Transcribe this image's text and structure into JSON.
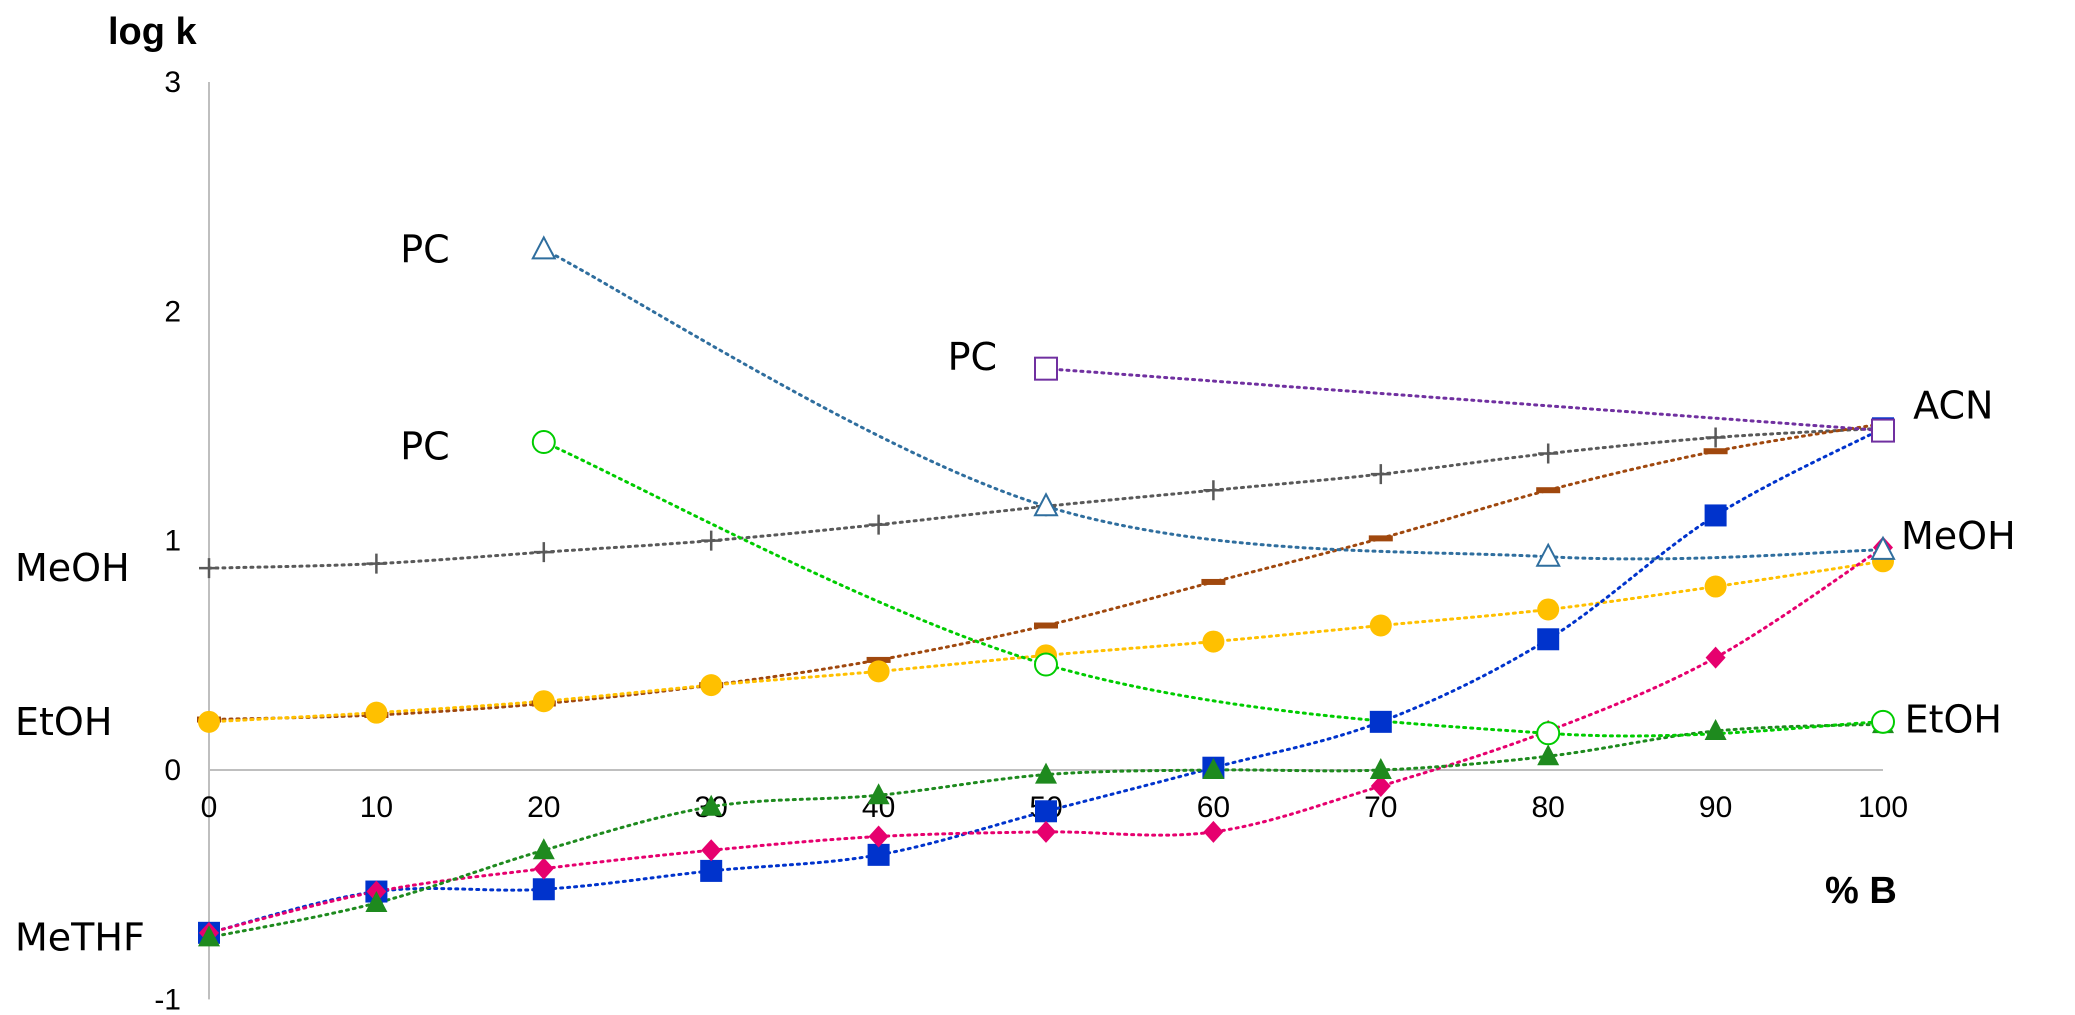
{
  "chart_data": {
    "type": "scatter",
    "title": "",
    "ylabel": "log k",
    "xlabel": "% B",
    "xlim": [
      0,
      100
    ],
    "ylim": [
      -1,
      3
    ],
    "x_ticks": [
      "0",
      "10",
      "20",
      "30",
      "40",
      "50",
      "60",
      "70",
      "80",
      "90",
      "100"
    ],
    "y_ticks": [
      "-1",
      "0",
      "1",
      "2",
      "3"
    ],
    "grid": false,
    "legend": "none",
    "annotations": [
      {
        "text": "PC",
        "x": 12.9,
        "y": 2.27
      },
      {
        "text": "PC",
        "x": 12.9,
        "y": 1.41
      },
      {
        "text": "PC",
        "x": 45.6,
        "y": 1.8
      },
      {
        "text": "ACN",
        "x": 104.2,
        "y": 1.59
      },
      {
        "text": "MeOH",
        "x": 104.5,
        "y": 1.02
      },
      {
        "text": "EtOH",
        "x": 104.2,
        "y": 0.22
      },
      {
        "text": "MeOH",
        "x": -3.0,
        "y": 0.88
      },
      {
        "text": "EtOH",
        "x": -3.0,
        "y": 0.21
      },
      {
        "text": "MeTHF",
        "x": -3.0,
        "y": -0.73
      }
    ],
    "series": [
      {
        "marker": "plus",
        "color": "#595959",
        "x": [
          0,
          10,
          20,
          30,
          40,
          50,
          60,
          70,
          80,
          90,
          100
        ],
        "y": [
          0.88,
          0.9,
          0.95,
          1.0,
          1.07,
          1.15,
          1.22,
          1.29,
          1.38,
          1.45,
          1.49
        ]
      },
      {
        "marker": "dash",
        "color": "#A0480E",
        "x": [
          0,
          10,
          20,
          30,
          40,
          50,
          60,
          70,
          80,
          90,
          100
        ],
        "y": [
          0.22,
          0.24,
          0.29,
          0.37,
          0.48,
          0.63,
          0.82,
          1.01,
          1.22,
          1.39,
          1.51
        ]
      },
      {
        "marker": "circle",
        "color": "#FFC000",
        "x": [
          0,
          10,
          20,
          30,
          40,
          50,
          60,
          70,
          80,
          90,
          100
        ],
        "y": [
          0.21,
          0.25,
          0.3,
          0.37,
          0.43,
          0.5,
          0.56,
          0.63,
          0.7,
          0.8,
          0.91
        ]
      },
      {
        "marker": "square",
        "color": "#0033CC",
        "x": [
          0,
          10,
          20,
          30,
          40,
          50,
          60,
          70,
          80,
          90,
          100
        ],
        "y": [
          -0.71,
          -0.53,
          -0.52,
          -0.44,
          -0.37,
          -0.18,
          0.01,
          0.21,
          0.57,
          1.11,
          1.49
        ]
      },
      {
        "marker": "diamond",
        "color": "#E6006E",
        "x": [
          0,
          10,
          20,
          30,
          40,
          50,
          60,
          70,
          80,
          90,
          100
        ],
        "y": [
          -0.71,
          -0.53,
          -0.43,
          -0.35,
          -0.29,
          -0.27,
          -0.27,
          -0.07,
          0.17,
          0.49,
          0.97
        ]
      },
      {
        "marker": "triangle",
        "color": "#1E8A1E",
        "x": [
          0,
          10,
          20,
          30,
          40,
          50,
          60,
          70,
          80,
          90,
          100
        ],
        "y": [
          -0.73,
          -0.58,
          -0.35,
          -0.16,
          -0.11,
          -0.02,
          0.0,
          0.0,
          0.06,
          0.17,
          0.2
        ]
      },
      {
        "marker": "open-triangle",
        "color": "#2F6E9E",
        "x": [
          20,
          50,
          80,
          100
        ],
        "y": [
          2.27,
          1.15,
          0.93,
          0.96
        ]
      },
      {
        "marker": "open-circle",
        "color": "#00CC00",
        "x": [
          20,
          50,
          80,
          100
        ],
        "y": [
          1.43,
          0.46,
          0.16,
          0.21
        ]
      },
      {
        "marker": "open-square",
        "color": "#7030A0",
        "x": [
          50,
          100
        ],
        "y": [
          1.75,
          1.48
        ]
      }
    ]
  }
}
